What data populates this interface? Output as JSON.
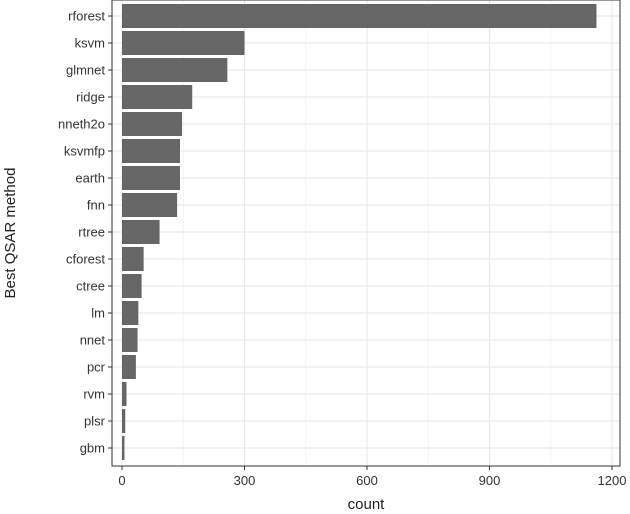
{
  "chart_data": {
    "type": "bar",
    "orientation": "horizontal",
    "xlabel": "count",
    "ylabel": "Best QSAR method",
    "xlim": [
      0,
      1210
    ],
    "x_ticks": [
      0,
      300,
      600,
      900,
      1200
    ],
    "grid": true,
    "bar_color": "#666666",
    "categories": [
      "rforest",
      "ksvm",
      "glmnet",
      "ridge",
      "nneth2o",
      "ksvmfp",
      "earth",
      "fnn",
      "rtree",
      "cforest",
      "ctree",
      "lm",
      "nnet",
      "pcr",
      "rvm",
      "plsr",
      "gbm"
    ],
    "values": [
      1162,
      300,
      258,
      172,
      147,
      142,
      142,
      135,
      92,
      53,
      48,
      40,
      38,
      34,
      11,
      8,
      6
    ]
  }
}
